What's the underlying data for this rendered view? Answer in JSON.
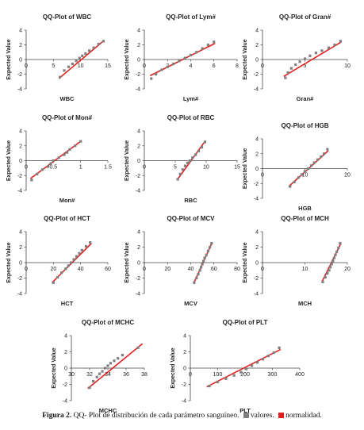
{
  "figure": {
    "caption_label": "Figura 2.",
    "caption_text": "QQ- Plot de distribución de cada parámetro sanguíneo.",
    "legend": [
      {
        "label": "valores.",
        "color": "#7f7f7f"
      },
      {
        "label": "normalidad.",
        "color": "#e02020"
      }
    ]
  },
  "chart_data": [
    {
      "type": "scatter",
      "title": "QQ-Plot of WBC",
      "xlabel": "WBC",
      "ylabel": "Expected Value",
      "xlim": [
        0,
        15
      ],
      "xticks": [
        0,
        5,
        10,
        15
      ],
      "ylim": [
        -4,
        4
      ],
      "yticks": [
        -4,
        -2,
        0,
        2,
        4
      ],
      "series": [
        {
          "name": "valores",
          "color": "#7f7f7f",
          "x": [
            6.2,
            7,
            7.8,
            8.5,
            9.2,
            9.8,
            10.3,
            10.9,
            11.6,
            12.4,
            13.3,
            14.2
          ],
          "y": [
            -2.4,
            -1.5,
            -1,
            -0.6,
            -0.2,
            0.2,
            0.5,
            0.8,
            1.2,
            1.6,
            2.1,
            2.5
          ]
        },
        {
          "name": "normalidad",
          "color": "#e02020",
          "x": [
            6,
            14.3
          ],
          "y": [
            -2.6,
            2.6
          ]
        }
      ]
    },
    {
      "type": "scatter",
      "title": "QQ-Plot of Lym#",
      "xlabel": "Lym#",
      "ylabel": "Expected Value",
      "xlim": [
        0,
        8
      ],
      "xticks": [
        0,
        2,
        4,
        6,
        8
      ],
      "ylim": [
        -4,
        4
      ],
      "yticks": [
        -4,
        -2,
        0,
        2,
        4
      ],
      "series": [
        {
          "name": "valores",
          "color": "#7f7f7f",
          "x": [
            0.6,
            1,
            1.5,
            2,
            2.5,
            3,
            3.5,
            4,
            4.5,
            5,
            5.5,
            6
          ],
          "y": [
            -2.6,
            -2,
            -1.4,
            -1,
            -0.6,
            -0.2,
            0.2,
            0.6,
            1,
            1.5,
            2,
            2.4
          ]
        },
        {
          "name": "normalidad",
          "color": "#e02020",
          "x": [
            0.5,
            6.1
          ],
          "y": [
            -2.2,
            2.2
          ]
        }
      ]
    },
    {
      "type": "scatter",
      "title": "QQ-Plot of Gran#",
      "xlabel": "Gran#",
      "ylabel": "Expected Value",
      "xlim": [
        0,
        10
      ],
      "xticks": [
        0,
        5,
        10
      ],
      "ylim": [
        -4,
        4
      ],
      "yticks": [
        -4,
        -2,
        0,
        2,
        4
      ],
      "series": [
        {
          "name": "valores",
          "color": "#7f7f7f",
          "x": [
            2.7,
            3,
            3.4,
            3.9,
            4.4,
            5,
            5.6,
            6.3,
            7,
            7.8,
            8.5,
            9.2
          ],
          "y": [
            -2.5,
            -1.8,
            -1.2,
            -0.7,
            -0.3,
            0.1,
            0.5,
            0.9,
            1.2,
            1.6,
            2,
            2.5
          ]
        },
        {
          "name": "normalidad",
          "color": "#e02020",
          "x": [
            2.5,
            9.3
          ],
          "y": [
            -2.3,
            2.4
          ]
        }
      ]
    },
    {
      "type": "scatter",
      "title": "QQ-Plot of Mon#",
      "xlabel": "Mon#",
      "ylabel": "Expected Value",
      "xlim": [
        0,
        1.5
      ],
      "xticks": [
        0,
        0.5,
        1,
        1.5
      ],
      "ylim": [
        -4,
        4
      ],
      "yticks": [
        -4,
        -2,
        0,
        2,
        4
      ],
      "series": [
        {
          "name": "valores",
          "color": "#7f7f7f",
          "x": [
            0.1,
            0.2,
            0.3,
            0.4,
            0.45,
            0.5,
            0.6,
            0.7,
            0.75,
            0.8,
            0.9,
            1
          ],
          "y": [
            -2.6,
            -1.8,
            -1.2,
            -0.8,
            -0.4,
            0,
            0.4,
            0.8,
            1.1,
            1.5,
            2,
            2.6
          ]
        },
        {
          "name": "normalidad",
          "color": "#e02020",
          "x": [
            0.08,
            1.02
          ],
          "y": [
            -2.4,
            2.7
          ]
        }
      ]
    },
    {
      "type": "scatter",
      "title": "QQ-Plot of RBC",
      "xlabel": "RBC",
      "ylabel": "Expected Value",
      "xlim": [
        0,
        15
      ],
      "xticks": [
        0,
        5,
        10,
        15
      ],
      "ylim": [
        -4,
        4
      ],
      "yticks": [
        -4,
        -2,
        0,
        2,
        4
      ],
      "series": [
        {
          "name": "valores",
          "color": "#7f7f7f",
          "x": [
            5.4,
            5.8,
            6.2,
            6.6,
            7,
            7.4,
            7.8,
            8.3,
            8.8,
            9.3,
            9.8
          ],
          "y": [
            -2.5,
            -1.8,
            -1.2,
            -0.7,
            -0.3,
            0,
            0.4,
            0.8,
            1.3,
            1.8,
            2.5
          ]
        },
        {
          "name": "normalidad",
          "color": "#e02020",
          "x": [
            5.3,
            9.9
          ],
          "y": [
            -2.6,
            2.7
          ]
        }
      ]
    },
    {
      "type": "scatter",
      "title": "QQ-Plot of HGB",
      "xlabel": "HGB",
      "ylabel": "Expected Value",
      "xlim": [
        0,
        20
      ],
      "xticks": [
        0,
        10,
        20
      ],
      "ylim": [
        -4,
        4
      ],
      "yticks": [
        -4,
        -2,
        0,
        2,
        4
      ],
      "series": [
        {
          "name": "valores",
          "color": "#7f7f7f",
          "x": [
            6.5,
            7.5,
            8.5,
            9.3,
            10,
            10.8,
            11.5,
            12.2,
            13,
            13.8,
            14.5,
            15.3
          ],
          "y": [
            -2.4,
            -1.8,
            -1.2,
            -0.8,
            -0.4,
            0,
            0.4,
            0.8,
            1.2,
            1.6,
            2,
            2.6
          ]
        },
        {
          "name": "normalidad",
          "color": "#e02020",
          "x": [
            6.2,
            15.5
          ],
          "y": [
            -2.4,
            2.4
          ]
        }
      ]
    },
    {
      "type": "scatter",
      "title": "QQ-Plot of HCT",
      "xlabel": "HCT",
      "ylabel": "Expected Value",
      "xlim": [
        0,
        60
      ],
      "xticks": [
        0,
        20,
        40,
        60
      ],
      "ylim": [
        -4,
        4
      ],
      "yticks": [
        -4,
        -2,
        0,
        2,
        4
      ],
      "series": [
        {
          "name": "valores",
          "color": "#7f7f7f",
          "x": [
            20,
            23,
            26,
            29,
            31,
            33,
            35,
            37,
            39,
            41,
            44,
            47
          ],
          "y": [
            -2.6,
            -1.9,
            -1.3,
            -0.8,
            -0.4,
            0,
            0.4,
            0.8,
            1.2,
            1.6,
            2.1,
            2.6
          ]
        },
        {
          "name": "normalidad",
          "color": "#e02020",
          "x": [
            19,
            48
          ],
          "y": [
            -2.6,
            2.5
          ]
        }
      ]
    },
    {
      "type": "scatter",
      "title": "QQ-Plot of MCV",
      "xlabel": "MCV",
      "ylabel": "Expected Value",
      "xlim": [
        0,
        80
      ],
      "xticks": [
        0,
        20,
        40,
        60,
        80
      ],
      "ylim": [
        -4,
        4
      ],
      "yticks": [
        -4,
        -2,
        0,
        2,
        4
      ],
      "series": [
        {
          "name": "valores",
          "color": "#7f7f7f",
          "x": [
            43,
            45,
            46.5,
            48,
            49,
            50,
            51,
            52,
            53.5,
            55,
            56.5,
            58
          ],
          "y": [
            -2.6,
            -2,
            -1.5,
            -1,
            -0.6,
            -0.2,
            0.2,
            0.6,
            1,
            1.5,
            2,
            2.5
          ]
        },
        {
          "name": "normalidad",
          "color": "#e02020",
          "x": [
            42.5,
            58.5
          ],
          "y": [
            -2.7,
            2.6
          ]
        }
      ]
    },
    {
      "type": "scatter",
      "title": "QQ-Plot of MCH",
      "xlabel": "MCH",
      "ylabel": "Expected Value",
      "xlim": [
        0,
        20
      ],
      "xticks": [
        0,
        10,
        20
      ],
      "ylim": [
        -4,
        4
      ],
      "yticks": [
        -4,
        -2,
        0,
        2,
        4
      ],
      "series": [
        {
          "name": "valores",
          "color": "#7f7f7f",
          "x": [
            14.2,
            14.8,
            15.3,
            15.7,
            16,
            16.3,
            16.6,
            16.9,
            17.2,
            17.5,
            17.9,
            18.3
          ],
          "y": [
            -2.5,
            -1.9,
            -1.4,
            -1,
            -0.6,
            -0.2,
            0.2,
            0.6,
            1,
            1.4,
            1.9,
            2.5
          ]
        },
        {
          "name": "normalidad",
          "color": "#e02020",
          "x": [
            14,
            18.5
          ],
          "y": [
            -2.5,
            2.5
          ]
        }
      ]
    },
    {
      "type": "scatter",
      "title": "QQ-Plot of MCHC",
      "xlabel": "MCHC",
      "ylabel": "Expected Value",
      "xlim": [
        30,
        38
      ],
      "xticks": [
        30,
        32,
        34,
        36,
        38
      ],
      "ylim": [
        -4,
        4
      ],
      "yticks": [
        -4,
        -2,
        0,
        2,
        4
      ],
      "series": [
        {
          "name": "valores",
          "color": "#7f7f7f",
          "x": [
            32,
            32.4,
            32.8,
            33.1,
            33.4,
            33.7,
            34,
            34.3,
            34.7,
            35.1,
            35.6,
            37.3
          ],
          "y": [
            -2.4,
            -1.6,
            -1.1,
            -0.7,
            -0.4,
            0,
            0.3,
            0.6,
            0.9,
            1.2,
            1.6,
            2.5
          ]
        },
        {
          "name": "normalidad",
          "color": "#e02020",
          "x": [
            31.8,
            37.8
          ],
          "y": [
            -2.5,
            3
          ]
        }
      ]
    },
    {
      "type": "scatter",
      "title": "QQ-Plot of PLT",
      "xlabel": "PLT",
      "ylabel": "Expected Value",
      "xlim": [
        0,
        400
      ],
      "xticks": [
        0,
        100,
        200,
        300,
        400
      ],
      "ylim": [
        -4,
        4
      ],
      "yticks": [
        -4,
        -2,
        0,
        2,
        4
      ],
      "series": [
        {
          "name": "valores",
          "color": "#7f7f7f",
          "x": [
            70,
            100,
            130,
            160,
            185,
            205,
            225,
            245,
            265,
            285,
            305,
            325
          ],
          "y": [
            -2.2,
            -1.7,
            -1.3,
            -0.9,
            -0.5,
            -0.1,
            0.3,
            0.7,
            1.1,
            1.5,
            1.9,
            2.5
          ]
        },
        {
          "name": "normalidad",
          "color": "#e02020",
          "x": [
            60,
            330
          ],
          "y": [
            -2.3,
            2.3
          ]
        }
      ]
    }
  ]
}
